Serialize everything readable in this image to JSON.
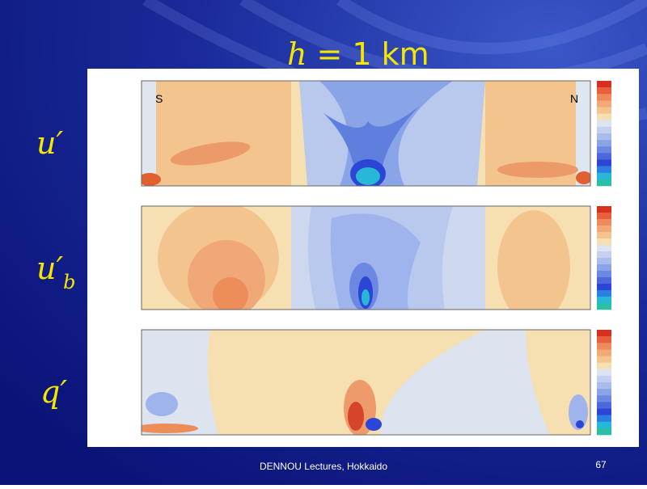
{
  "slide": {
    "title": {
      "symbol": "h",
      "rest": "= 1 km"
    },
    "panels": [
      {
        "label": "u′",
        "left_marker": "S",
        "right_marker": "N"
      },
      {
        "label": "u′",
        "subscript": "b"
      },
      {
        "label": "q′"
      }
    ],
    "footer": "DENNOU Lectures, Hokkaido",
    "page_number": "67"
  }
}
